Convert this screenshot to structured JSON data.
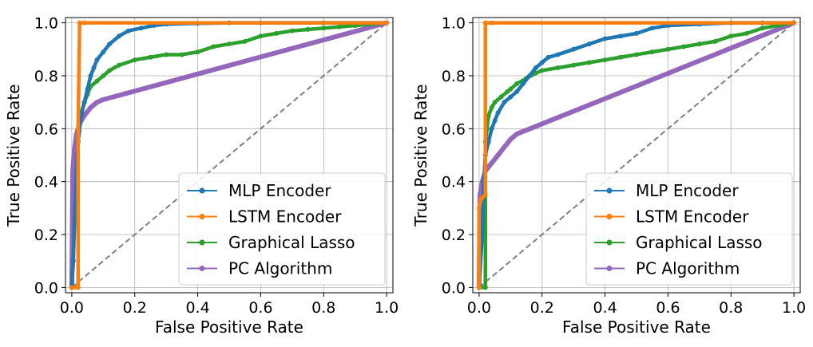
{
  "chart_data": [
    {
      "type": "line",
      "panel": "left",
      "title": "",
      "xlabel": "False Positive Rate",
      "ylabel": "True Positive Rate",
      "xlim": [
        -0.02,
        1.02
      ],
      "ylim": [
        -0.02,
        1.02
      ],
      "xticks": [
        0.0,
        0.2,
        0.4,
        0.6,
        0.8,
        1.0
      ],
      "yticks": [
        0.0,
        0.2,
        0.4,
        0.6,
        0.8,
        1.0
      ],
      "xtick_labels": [
        "0.0",
        "0.2",
        "0.4",
        "0.6",
        "0.8",
        "1.0"
      ],
      "ytick_labels": [
        "0.0",
        "0.2",
        "0.4",
        "0.6",
        "0.8",
        "1.0"
      ],
      "grid": true,
      "legend_position": "bottom-right",
      "series": [
        {
          "name": "MLP Encoder",
          "color": "#1f77b4",
          "x": [
            0.0,
            0.005,
            0.01,
            0.015,
            0.02,
            0.03,
            0.04,
            0.05,
            0.06,
            0.07,
            0.08,
            0.1,
            0.12,
            0.15,
            0.18,
            0.22,
            0.26,
            0.3,
            0.4,
            0.5,
            0.6,
            0.8,
            1.0
          ],
          "y": [
            0.0,
            0.1,
            0.3,
            0.45,
            0.55,
            0.65,
            0.7,
            0.75,
            0.8,
            0.83,
            0.86,
            0.89,
            0.92,
            0.95,
            0.97,
            0.98,
            0.99,
            0.995,
            0.998,
            1.0,
            1.0,
            1.0,
            1.0
          ]
        },
        {
          "name": "LSTM Encoder",
          "color": "#ff7f0e",
          "x": [
            0.0,
            0.02,
            0.02,
            0.025,
            0.04,
            1.0
          ],
          "y": [
            0.0,
            0.0,
            0.6,
            1.0,
            1.0,
            1.0
          ]
        },
        {
          "name": "Graphical Lasso",
          "color": "#2ca02c",
          "x": [
            0.0,
            0.02,
            0.02,
            0.025,
            0.03,
            0.04,
            0.05,
            0.06,
            0.08,
            0.1,
            0.12,
            0.15,
            0.2,
            0.25,
            0.3,
            0.35,
            0.4,
            0.45,
            0.5,
            0.55,
            0.6,
            0.65,
            0.7,
            0.75,
            0.8,
            0.85,
            0.9,
            0.95,
            1.0
          ],
          "y": [
            0.0,
            0.0,
            0.55,
            0.62,
            0.66,
            0.7,
            0.73,
            0.76,
            0.78,
            0.8,
            0.82,
            0.84,
            0.86,
            0.87,
            0.88,
            0.88,
            0.89,
            0.91,
            0.92,
            0.93,
            0.95,
            0.96,
            0.97,
            0.975,
            0.98,
            0.985,
            0.99,
            0.995,
            1.0
          ]
        },
        {
          "name": "PC Algorithm",
          "color": "#9467bd",
          "x": [
            0.0,
            0.003,
            0.008,
            0.015,
            0.025,
            0.04,
            0.06,
            0.08,
            0.1,
            1.0
          ],
          "y": [
            0.0,
            0.44,
            0.52,
            0.58,
            0.62,
            0.65,
            0.68,
            0.7,
            0.71,
            1.0
          ]
        },
        {
          "name": "Chance",
          "color": "#808080",
          "x": [
            0.0,
            1.0
          ],
          "y": [
            0.0,
            1.0
          ]
        }
      ],
      "legend": [
        "MLP Encoder",
        "LSTM Encoder",
        "Graphical Lasso",
        "PC Algorithm"
      ]
    },
    {
      "type": "line",
      "panel": "right",
      "title": "",
      "xlabel": "False Positive Rate",
      "ylabel": "True Positive Rate",
      "xlim": [
        -0.02,
        1.02
      ],
      "ylim": [
        -0.02,
        1.02
      ],
      "xticks": [
        0.0,
        0.2,
        0.4,
        0.6,
        0.8,
        1.0
      ],
      "yticks": [
        0.0,
        0.2,
        0.4,
        0.6,
        0.8,
        1.0
      ],
      "xtick_labels": [
        "0.0",
        "0.2",
        "0.4",
        "0.6",
        "0.8",
        "1.0"
      ],
      "ytick_labels": [
        "0.0",
        "0.2",
        "0.4",
        "0.6",
        "0.8",
        "1.0"
      ],
      "grid": true,
      "legend_position": "bottom-right",
      "series": [
        {
          "name": "MLP Encoder",
          "color": "#1f77b4",
          "x": [
            0.0,
            0.01,
            0.015,
            0.02,
            0.03,
            0.04,
            0.05,
            0.06,
            0.08,
            0.1,
            0.12,
            0.14,
            0.16,
            0.18,
            0.2,
            0.22,
            0.25,
            0.3,
            0.35,
            0.4,
            0.45,
            0.5,
            0.55,
            0.6,
            0.7,
            0.8,
            0.9,
            1.0
          ],
          "y": [
            0.0,
            0.2,
            0.4,
            0.5,
            0.55,
            0.6,
            0.63,
            0.66,
            0.7,
            0.72,
            0.74,
            0.77,
            0.8,
            0.83,
            0.85,
            0.87,
            0.88,
            0.9,
            0.92,
            0.94,
            0.95,
            0.96,
            0.98,
            0.99,
            0.995,
            1.0,
            1.0,
            1.0
          ]
        },
        {
          "name": "LSTM Encoder",
          "color": "#ff7f0e",
          "x": [
            0.0,
            0.0,
            0.005,
            0.01,
            0.02,
            0.02,
            0.04,
            1.0
          ],
          "y": [
            0.0,
            0.3,
            0.33,
            0.34,
            0.35,
            1.0,
            1.0,
            1.0
          ]
        },
        {
          "name": "Graphical Lasso",
          "color": "#2ca02c",
          "x": [
            0.0,
            0.02,
            0.02,
            0.025,
            0.03,
            0.04,
            0.05,
            0.07,
            0.09,
            0.1,
            0.12,
            0.15,
            0.18,
            0.2,
            0.25,
            0.3,
            0.35,
            0.4,
            0.45,
            0.5,
            0.55,
            0.6,
            0.65,
            0.7,
            0.75,
            0.8,
            0.85,
            0.9,
            0.95,
            1.0
          ],
          "y": [
            0.0,
            0.0,
            0.55,
            0.6,
            0.65,
            0.68,
            0.7,
            0.72,
            0.74,
            0.75,
            0.77,
            0.79,
            0.81,
            0.82,
            0.83,
            0.84,
            0.85,
            0.86,
            0.87,
            0.88,
            0.89,
            0.9,
            0.91,
            0.92,
            0.93,
            0.95,
            0.96,
            0.98,
            0.99,
            1.0
          ]
        },
        {
          "name": "PC Algorithm",
          "color": "#9467bd",
          "x": [
            0.0,
            0.003,
            0.01,
            0.02,
            0.04,
            0.06,
            0.08,
            0.1,
            0.12,
            1.0
          ],
          "y": [
            0.0,
            0.35,
            0.4,
            0.44,
            0.47,
            0.5,
            0.53,
            0.56,
            0.58,
            1.0
          ]
        },
        {
          "name": "Chance",
          "color": "#808080",
          "x": [
            0.0,
            1.0
          ],
          "y": [
            0.0,
            1.0
          ]
        }
      ],
      "legend": [
        "MLP Encoder",
        "LSTM Encoder",
        "Graphical Lasso",
        "PC Algorithm"
      ]
    }
  ]
}
